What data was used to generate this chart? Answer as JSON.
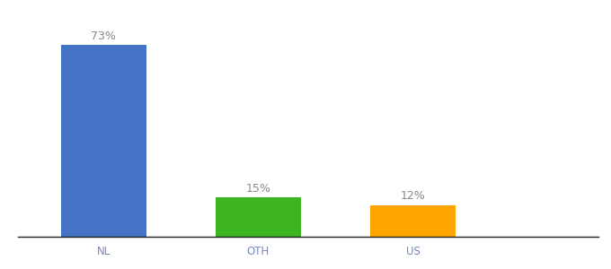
{
  "categories": [
    "NL",
    "OTH",
    "US"
  ],
  "values": [
    73,
    15,
    12
  ],
  "bar_colors": [
    "#4472C4",
    "#3CB520",
    "#FFA500"
  ],
  "ylim": [
    0,
    85
  ],
  "background_color": "#ffffff",
  "label_fontsize": 9,
  "tick_fontsize": 8.5,
  "bar_width": 0.55,
  "label_color": "#888888",
  "tick_color": "#7788bb",
  "spine_color": "#222222",
  "figure_width": 6.8,
  "figure_height": 3.0,
  "dpi": 100
}
